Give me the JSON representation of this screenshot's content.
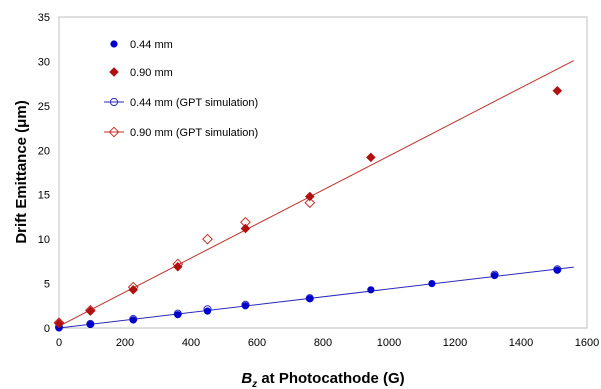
{
  "chart_data": {
    "type": "scatter",
    "xlabel": {
      "main": "B",
      "sub": "z",
      "rest": " at Photocathode (G)"
    },
    "ylabel": "Drift  Emittance (μm)",
    "xlim": [
      0,
      1600
    ],
    "ylim": [
      0,
      35
    ],
    "xticks": [
      0,
      200,
      400,
      600,
      800,
      1000,
      1200,
      1400,
      1600
    ],
    "yticks": [
      0,
      5,
      10,
      15,
      20,
      25,
      30,
      35
    ],
    "grid": false,
    "legend_position": "top-left",
    "series": [
      {
        "name": "0.44 mm",
        "kind": "points",
        "marker": "circle-filled",
        "color": "#0000cc",
        "x": [
          0,
          95,
          225,
          360,
          450,
          565,
          760,
          945,
          1130,
          1320,
          1510
        ],
        "y": [
          0.0,
          0.4,
          0.9,
          1.5,
          1.9,
          2.5,
          3.3,
          4.3,
          5.0,
          5.9,
          6.5
        ]
      },
      {
        "name": "0.90 mm",
        "kind": "points",
        "marker": "diamond-filled",
        "color": "#b01010",
        "x": [
          0,
          95,
          225,
          360,
          565,
          760,
          945,
          1510
        ],
        "y": [
          0.5,
          1.9,
          4.3,
          6.9,
          11.2,
          14.8,
          19.2,
          26.7
        ]
      },
      {
        "name": "0.44 mm (GPT simulation)",
        "kind": "line-points",
        "marker": "circle-open",
        "color": "#2a2ab8",
        "line_x": [
          0,
          1560
        ],
        "line_y": [
          0.0,
          6.85
        ],
        "x": [
          0,
          95,
          225,
          360,
          450,
          565,
          760,
          1320,
          1510
        ],
        "y": [
          0.1,
          0.45,
          1.0,
          1.6,
          2.1,
          2.6,
          3.35,
          6.0,
          6.6
        ]
      },
      {
        "name": "0.90 mm (GPT simulation)",
        "kind": "line-points",
        "marker": "diamond-open",
        "color": "#c0302a",
        "line_x": [
          0,
          1560
        ],
        "line_y": [
          0.2,
          30.1
        ],
        "x": [
          0,
          95,
          225,
          360,
          450,
          565,
          760
        ],
        "y": [
          0.6,
          2.0,
          4.6,
          7.2,
          10.0,
          11.9,
          14.1
        ]
      }
    ]
  }
}
